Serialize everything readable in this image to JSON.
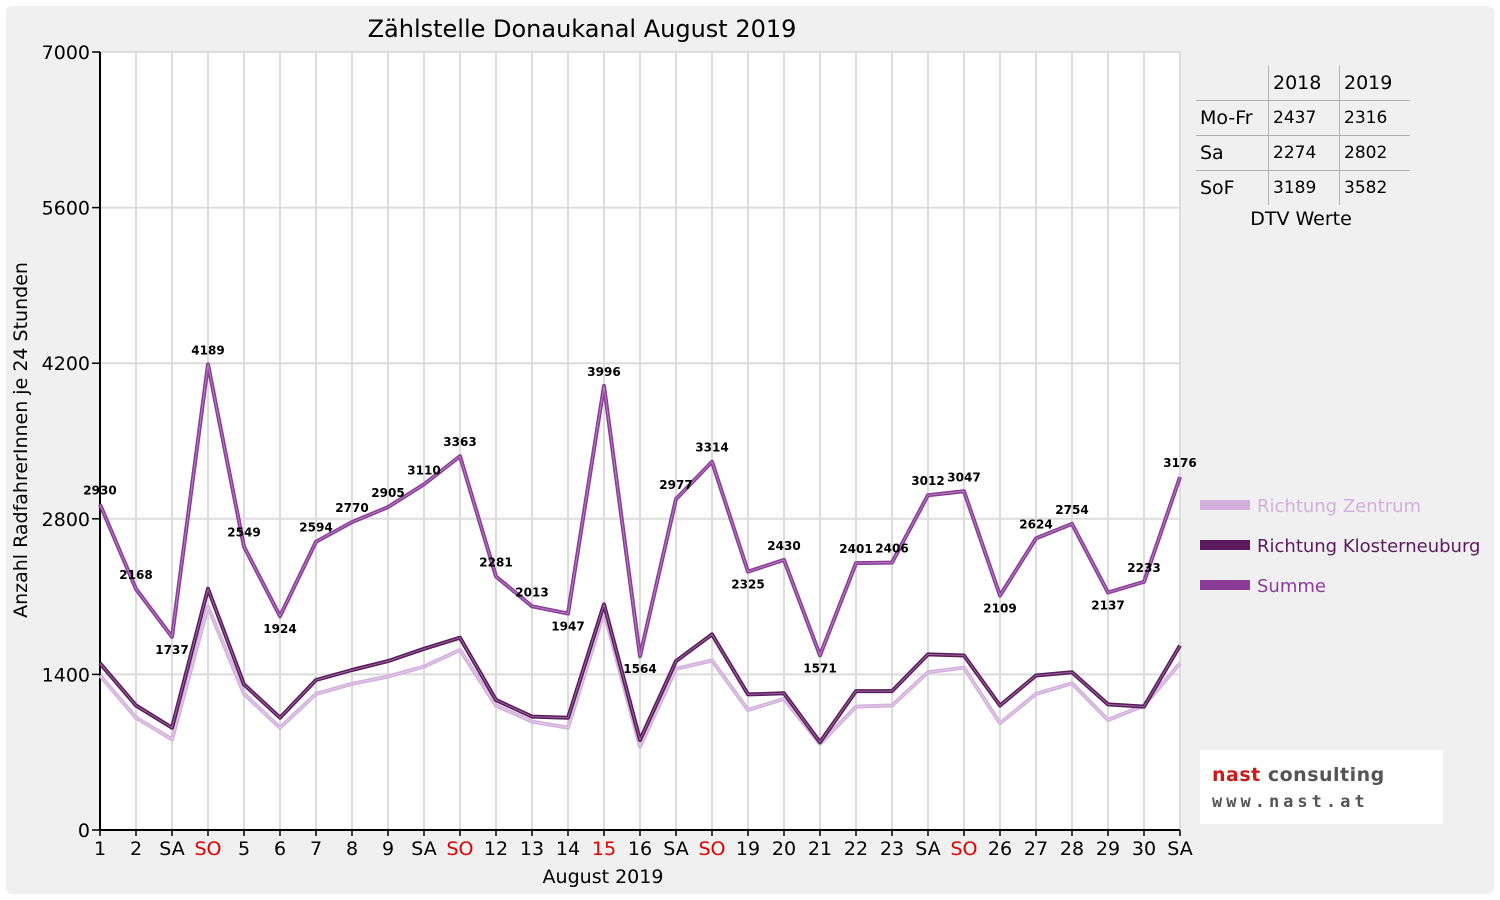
{
  "chart_data": {
    "type": "line",
    "title": "Zählstelle Donaukanal August 2019",
    "xlabel": "August 2019",
    "ylabel": "Anzahl RadfahrerInnen je 24 Stunden",
    "ylim": [
      0,
      7000
    ],
    "yticks": [
      0,
      1400,
      2800,
      4200,
      5600,
      7000
    ],
    "grid": true,
    "legend_position": "right",
    "categories": [
      "1",
      "2",
      "SA",
      "SO",
      "5",
      "6",
      "7",
      "8",
      "9",
      "SA",
      "SO",
      "12",
      "13",
      "14",
      "15",
      "16",
      "SA",
      "SO",
      "19",
      "20",
      "21",
      "22",
      "23",
      "SA",
      "SO",
      "26",
      "27",
      "28",
      "29",
      "30",
      "SA"
    ],
    "red_categories": [
      3,
      10,
      14,
      17,
      24
    ],
    "series": [
      {
        "name": "Richtung Zentrum",
        "color": "#d3b0dc",
        "values": [
          1390,
          1010,
          815,
          2010,
          1225,
          920,
          1225,
          1315,
          1380,
          1470,
          1620,
          1120,
          975,
          920,
          1960,
          750,
          1450,
          1525,
          1080,
          1180,
          775,
          1110,
          1120,
          1420,
          1460,
          960,
          1225,
          1320,
          990,
          1120,
          1500
        ]
      },
      {
        "name": "Richtung Klosterneuburg",
        "color": "#5b1a5e",
        "values": [
          1500,
          1120,
          920,
          2170,
          1310,
          1010,
          1350,
          1440,
          1520,
          1630,
          1730,
          1170,
          1020,
          1010,
          2030,
          810,
          1520,
          1760,
          1220,
          1230,
          790,
          1250,
          1250,
          1580,
          1570,
          1120,
          1390,
          1420,
          1130,
          1110,
          1660
        ]
      },
      {
        "name": "Summe",
        "color": "#8a3c98",
        "values": [
          2930,
          2168,
          1737,
          4189,
          2549,
          1924,
          2594,
          2770,
          2905,
          3110,
          3363,
          2281,
          2013,
          1947,
          3996,
          1564,
          2977,
          3314,
          2325,
          2430,
          1571,
          2401,
          2406,
          3012,
          3047,
          2109,
          2624,
          2754,
          2137,
          2233,
          3176
        ],
        "data_labels": [
          "2930",
          "2168",
          "1737",
          "4189",
          "2549",
          "1924",
          "2594",
          "2770",
          "2905",
          "3110",
          "3363",
          "2281",
          "2013",
          "1947",
          "3996",
          "1564",
          "2977",
          "3314",
          "2325",
          "2430",
          "1571",
          "2401",
          "2406",
          "3012",
          "3047",
          "2109",
          "2624",
          "2754",
          "2137",
          "2233",
          "3176"
        ]
      }
    ]
  },
  "dtv_table": {
    "headers": [
      "",
      "2018",
      "2019"
    ],
    "rows": [
      {
        "label": "Mo-Fr",
        "v2018": "2437",
        "v2019": "2316"
      },
      {
        "label": "Sa",
        "v2018": "2274",
        "v2019": "2802"
      },
      {
        "label": "SoF",
        "v2018": "3189",
        "v2019": "3582"
      }
    ],
    "caption": "DTV Werte"
  },
  "logo": {
    "line1_red": "nast",
    "line1_dark": " consulting",
    "line2": "www.nast.at"
  },
  "colors": {
    "weekend_label": "#e00000",
    "background": "#f0f0f0"
  }
}
